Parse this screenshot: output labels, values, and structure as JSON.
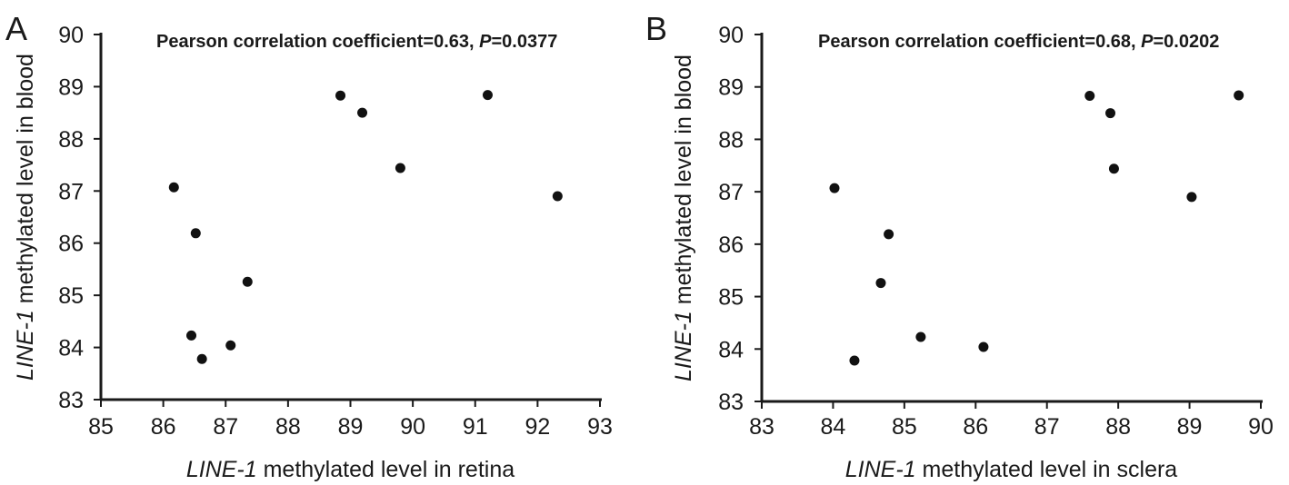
{
  "chart_data": [
    {
      "type": "scatter",
      "panel_label": "A",
      "annotation": {
        "text": "Pearson correlation coefficient=0.63, ",
        "p_label": "P",
        "p_value_text": "=0.0377"
      },
      "xlabel_italic": "LINE-1",
      "xlabel_rest": " methylated level in retina",
      "ylabel_italic": "LINE-1",
      "ylabel_rest": " methylated level in blood",
      "xlim": [
        85,
        93
      ],
      "ylim": [
        83,
        90
      ],
      "xticks": [
        85,
        86,
        87,
        88,
        89,
        90,
        91,
        92,
        93
      ],
      "yticks": [
        83,
        84,
        85,
        86,
        87,
        88,
        89,
        90
      ],
      "grid": false,
      "points": [
        {
          "x": 86.17,
          "y": 87.07
        },
        {
          "x": 86.52,
          "y": 86.19
        },
        {
          "x": 87.35,
          "y": 85.26
        },
        {
          "x": 86.45,
          "y": 84.23
        },
        {
          "x": 87.08,
          "y": 84.04
        },
        {
          "x": 86.62,
          "y": 83.78
        },
        {
          "x": 88.84,
          "y": 88.83
        },
        {
          "x": 89.19,
          "y": 88.5
        },
        {
          "x": 89.8,
          "y": 87.44
        },
        {
          "x": 91.2,
          "y": 88.84
        },
        {
          "x": 92.32,
          "y": 86.9
        }
      ]
    },
    {
      "type": "scatter",
      "panel_label": "B",
      "annotation": {
        "text": "Pearson correlation coefficient=0.68, ",
        "p_label": "P",
        "p_value_text": "=0.0202"
      },
      "xlabel_italic": "LINE-1",
      "xlabel_rest": " methylated level in sclera",
      "ylabel_italic": "LINE-1",
      "ylabel_rest": " methylated level in blood",
      "xlim": [
        83,
        90
      ],
      "ylim": [
        83,
        90
      ],
      "xticks": [
        83,
        84,
        85,
        86,
        87,
        88,
        89,
        90
      ],
      "yticks": [
        83,
        84,
        85,
        86,
        87,
        88,
        89,
        90
      ],
      "grid": false,
      "points": [
        {
          "x": 84.02,
          "y": 87.07
        },
        {
          "x": 84.78,
          "y": 86.19
        },
        {
          "x": 84.67,
          "y": 85.26
        },
        {
          "x": 85.23,
          "y": 84.23
        },
        {
          "x": 86.11,
          "y": 84.04
        },
        {
          "x": 84.3,
          "y": 83.78
        },
        {
          "x": 87.6,
          "y": 88.83
        },
        {
          "x": 87.89,
          "y": 88.5
        },
        {
          "x": 87.94,
          "y": 87.44
        },
        {
          "x": 89.69,
          "y": 88.84
        },
        {
          "x": 89.03,
          "y": 86.9
        }
      ]
    }
  ]
}
